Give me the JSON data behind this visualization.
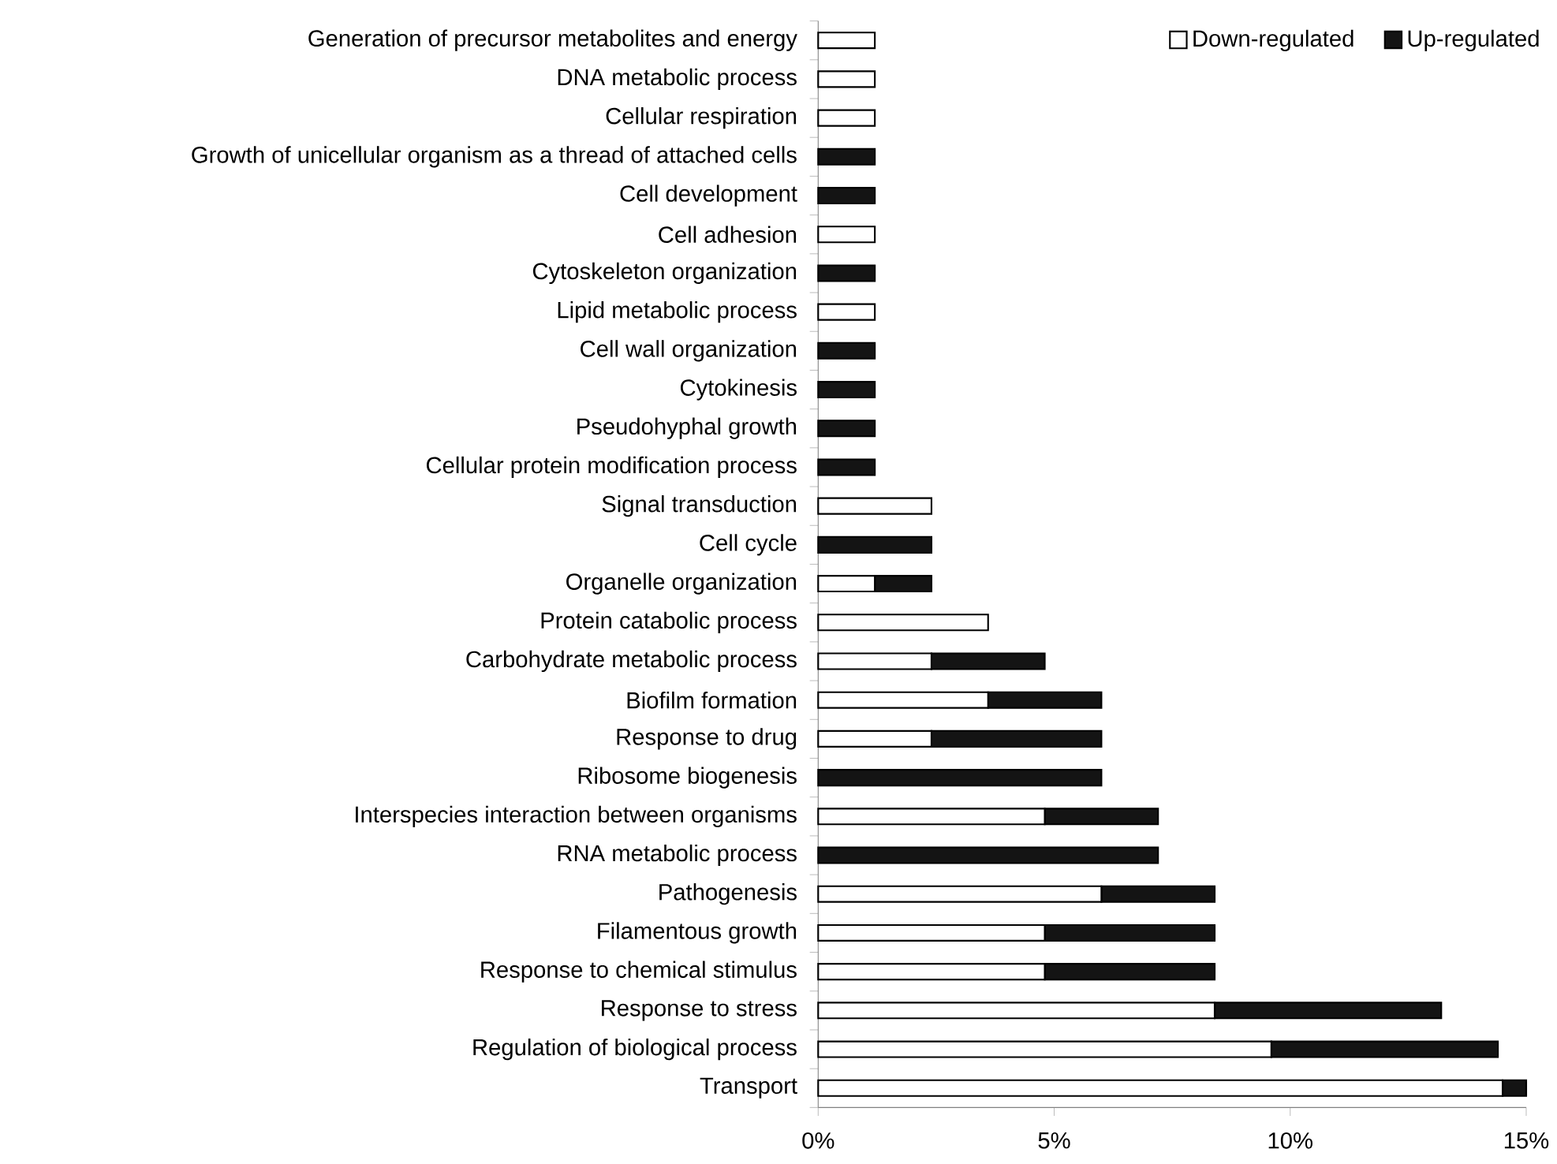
{
  "chart_data": {
    "type": "bar",
    "orientation": "horizontal",
    "stacked": true,
    "categories": [
      "Generation of precursor metabolites and energy",
      "DNA metabolic process",
      "Cellular respiration",
      "Growth of unicellular organism as a thread of attached cells",
      "Cell development",
      "Cell adhesion",
      "Cytoskeleton organization",
      "Lipid metabolic process",
      "Cell wall organization",
      "Cytokinesis",
      "Pseudohyphal growth",
      "Cellular protein modification process",
      "Signal transduction",
      "Cell cycle",
      "Organelle organization",
      "Protein catabolic process",
      "Carbohydrate metabolic process",
      "Biofilm formation",
      "Response to drug",
      "Ribosome biogenesis",
      "Interspecies interaction between organisms",
      "RNA metabolic process",
      "Pathogenesis",
      "Filamentous growth",
      "Response to chemical stimulus",
      "Response to stress",
      "Regulation of biological process",
      "Transport"
    ],
    "series": [
      {
        "name": "Down-regulated",
        "color": "#ffffff",
        "values": [
          1.2,
          1.2,
          1.2,
          0,
          0,
          1.2,
          0,
          1.2,
          0,
          0,
          0,
          0,
          2.4,
          0,
          1.2,
          3.6,
          2.4,
          3.6,
          2.4,
          0,
          4.8,
          0,
          6.0,
          4.8,
          4.8,
          8.4,
          9.6,
          14.5
        ]
      },
      {
        "name": "Up-regulated",
        "color": "#141414",
        "values": [
          0,
          0,
          0,
          1.2,
          1.2,
          0,
          1.2,
          0,
          1.2,
          1.2,
          1.2,
          1.2,
          0,
          2.4,
          1.2,
          0,
          2.4,
          2.4,
          3.6,
          6.0,
          2.4,
          7.2,
          2.4,
          3.6,
          3.6,
          4.8,
          4.8,
          0.5
        ]
      }
    ],
    "xlim": [
      0,
      15
    ],
    "xticks": [
      {
        "value": 0,
        "label": "0%"
      },
      {
        "value": 5,
        "label": "5%"
      },
      {
        "value": 10,
        "label": "10%"
      },
      {
        "value": 15,
        "label": "15%"
      }
    ],
    "grid": false,
    "legend": "top right"
  }
}
